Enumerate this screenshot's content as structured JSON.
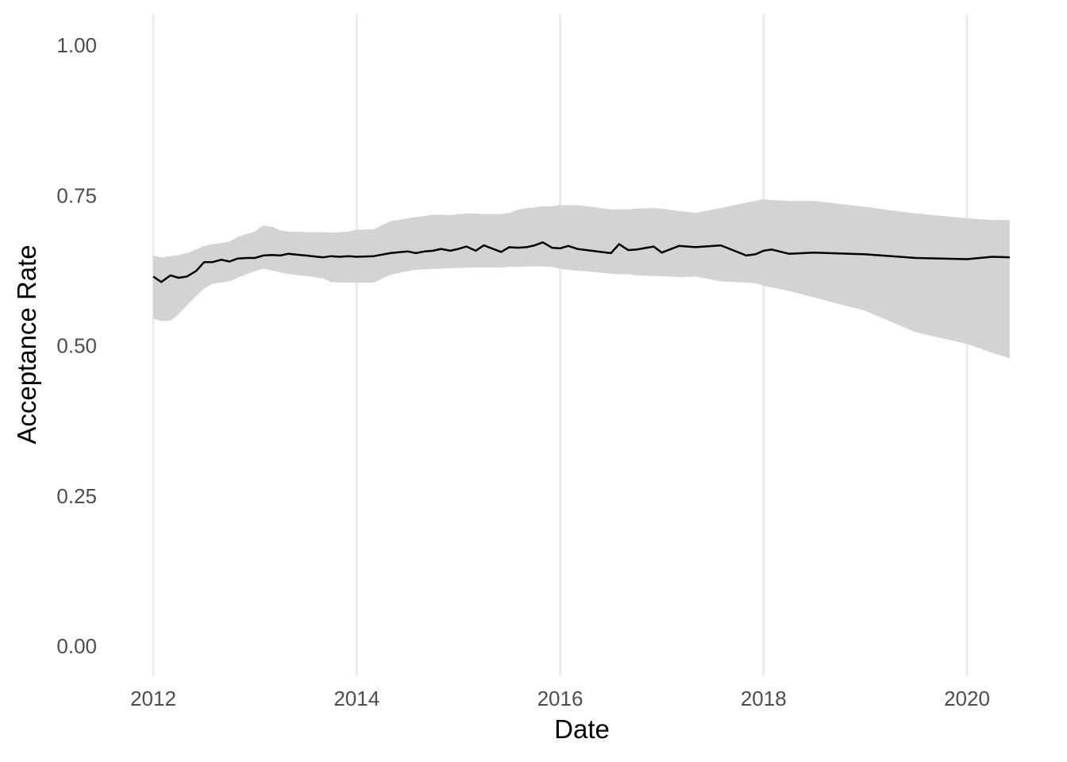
{
  "chart_data": {
    "type": "line",
    "title": "",
    "xlabel": "Date",
    "ylabel": "Acceptance Rate",
    "xlim": [
      2011.67,
      2020.58
    ],
    "ylim": [
      -0.05,
      1.05
    ],
    "x_ticks": [
      2012,
      2014,
      2016,
      2018,
      2020
    ],
    "x_tick_labels": [
      "2012",
      "2014",
      "2016",
      "2018",
      "2020"
    ],
    "y_ticks": [
      0,
      0.25,
      0.5,
      0.75,
      1.0
    ],
    "y_tick_labels": [
      "0.00",
      "0.25",
      "0.50",
      "0.75",
      "1.00"
    ],
    "grid": {
      "x_major": true,
      "y_major": false
    },
    "legend": "none",
    "colors": {
      "line": "#000000",
      "ribbon": "#d3d3d3",
      "grid": "#ebebeb"
    },
    "series": [
      {
        "x": [
          2012.0,
          2012.08,
          2012.17,
          2012.25,
          2012.33,
          2012.42,
          2012.5,
          2012.58,
          2012.67,
          2012.75,
          2012.83,
          2012.92,
          2013.0,
          2013.08,
          2013.17,
          2013.25,
          2013.33,
          2013.5,
          2013.67,
          2013.75,
          2013.83,
          2013.92,
          2014.0,
          2014.17,
          2014.33,
          2014.5,
          2014.58,
          2014.67,
          2014.75,
          2014.83,
          2014.92,
          2015.0,
          2015.08,
          2015.17,
          2015.25,
          2015.42,
          2015.5,
          2015.58,
          2015.67,
          2015.75,
          2015.83,
          2015.92,
          2016.0,
          2016.08,
          2016.17,
          2016.5,
          2016.58,
          2016.67,
          2016.75,
          2016.92,
          2017.0,
          2017.17,
          2017.33,
          2017.58,
          2017.83,
          2017.92,
          2018.0,
          2018.08,
          2018.25,
          2018.5,
          2019.0,
          2019.5,
          2020.0,
          2020.25,
          2020.42
        ],
        "y": [
          0.615,
          0.606,
          0.617,
          0.613,
          0.615,
          0.624,
          0.639,
          0.639,
          0.643,
          0.64,
          0.645,
          0.646,
          0.646,
          0.65,
          0.651,
          0.65,
          0.653,
          0.65,
          0.647,
          0.649,
          0.648,
          0.649,
          0.648,
          0.649,
          0.654,
          0.657,
          0.654,
          0.657,
          0.658,
          0.661,
          0.658,
          0.661,
          0.665,
          0.658,
          0.667,
          0.656,
          0.664,
          0.663,
          0.664,
          0.667,
          0.672,
          0.663,
          0.662,
          0.666,
          0.661,
          0.654,
          0.669,
          0.659,
          0.66,
          0.665,
          0.655,
          0.666,
          0.664,
          0.667,
          0.65,
          0.652,
          0.658,
          0.66,
          0.653,
          0.655,
          0.652,
          0.646,
          0.644,
          0.648,
          0.647
        ],
        "lower": [
          0.545,
          0.541,
          0.542,
          0.552,
          0.567,
          0.582,
          0.595,
          0.603,
          0.605,
          0.607,
          0.613,
          0.619,
          0.624,
          0.628,
          0.625,
          0.622,
          0.619,
          0.616,
          0.612,
          0.606,
          0.605,
          0.605,
          0.605,
          0.605,
          0.618,
          0.624,
          0.626,
          0.627,
          0.628,
          0.628,
          0.629,
          0.629,
          0.63,
          0.63,
          0.63,
          0.63,
          0.631,
          0.631,
          0.632,
          0.632,
          0.632,
          0.631,
          0.628,
          0.626,
          0.625,
          0.62,
          0.619,
          0.619,
          0.617,
          0.616,
          0.616,
          0.614,
          0.615,
          0.607,
          0.605,
          0.604,
          0.6,
          0.597,
          0.591,
          0.58,
          0.558,
          0.522,
          0.503,
          0.488,
          0.479
        ],
        "upper": [
          0.65,
          0.647,
          0.649,
          0.651,
          0.654,
          0.66,
          0.666,
          0.669,
          0.671,
          0.673,
          0.681,
          0.686,
          0.69,
          0.7,
          0.698,
          0.692,
          0.69,
          0.689,
          0.689,
          0.688,
          0.689,
          0.69,
          0.693,
          0.694,
          0.707,
          0.712,
          0.714,
          0.716,
          0.718,
          0.718,
          0.717,
          0.719,
          0.72,
          0.72,
          0.719,
          0.719,
          0.721,
          0.726,
          0.729,
          0.73,
          0.732,
          0.732,
          0.734,
          0.734,
          0.734,
          0.727,
          0.727,
          0.727,
          0.728,
          0.729,
          0.728,
          0.724,
          0.721,
          0.729,
          0.738,
          0.741,
          0.744,
          0.742,
          0.741,
          0.741,
          0.731,
          0.72,
          0.712,
          0.709,
          0.709
        ]
      }
    ]
  }
}
